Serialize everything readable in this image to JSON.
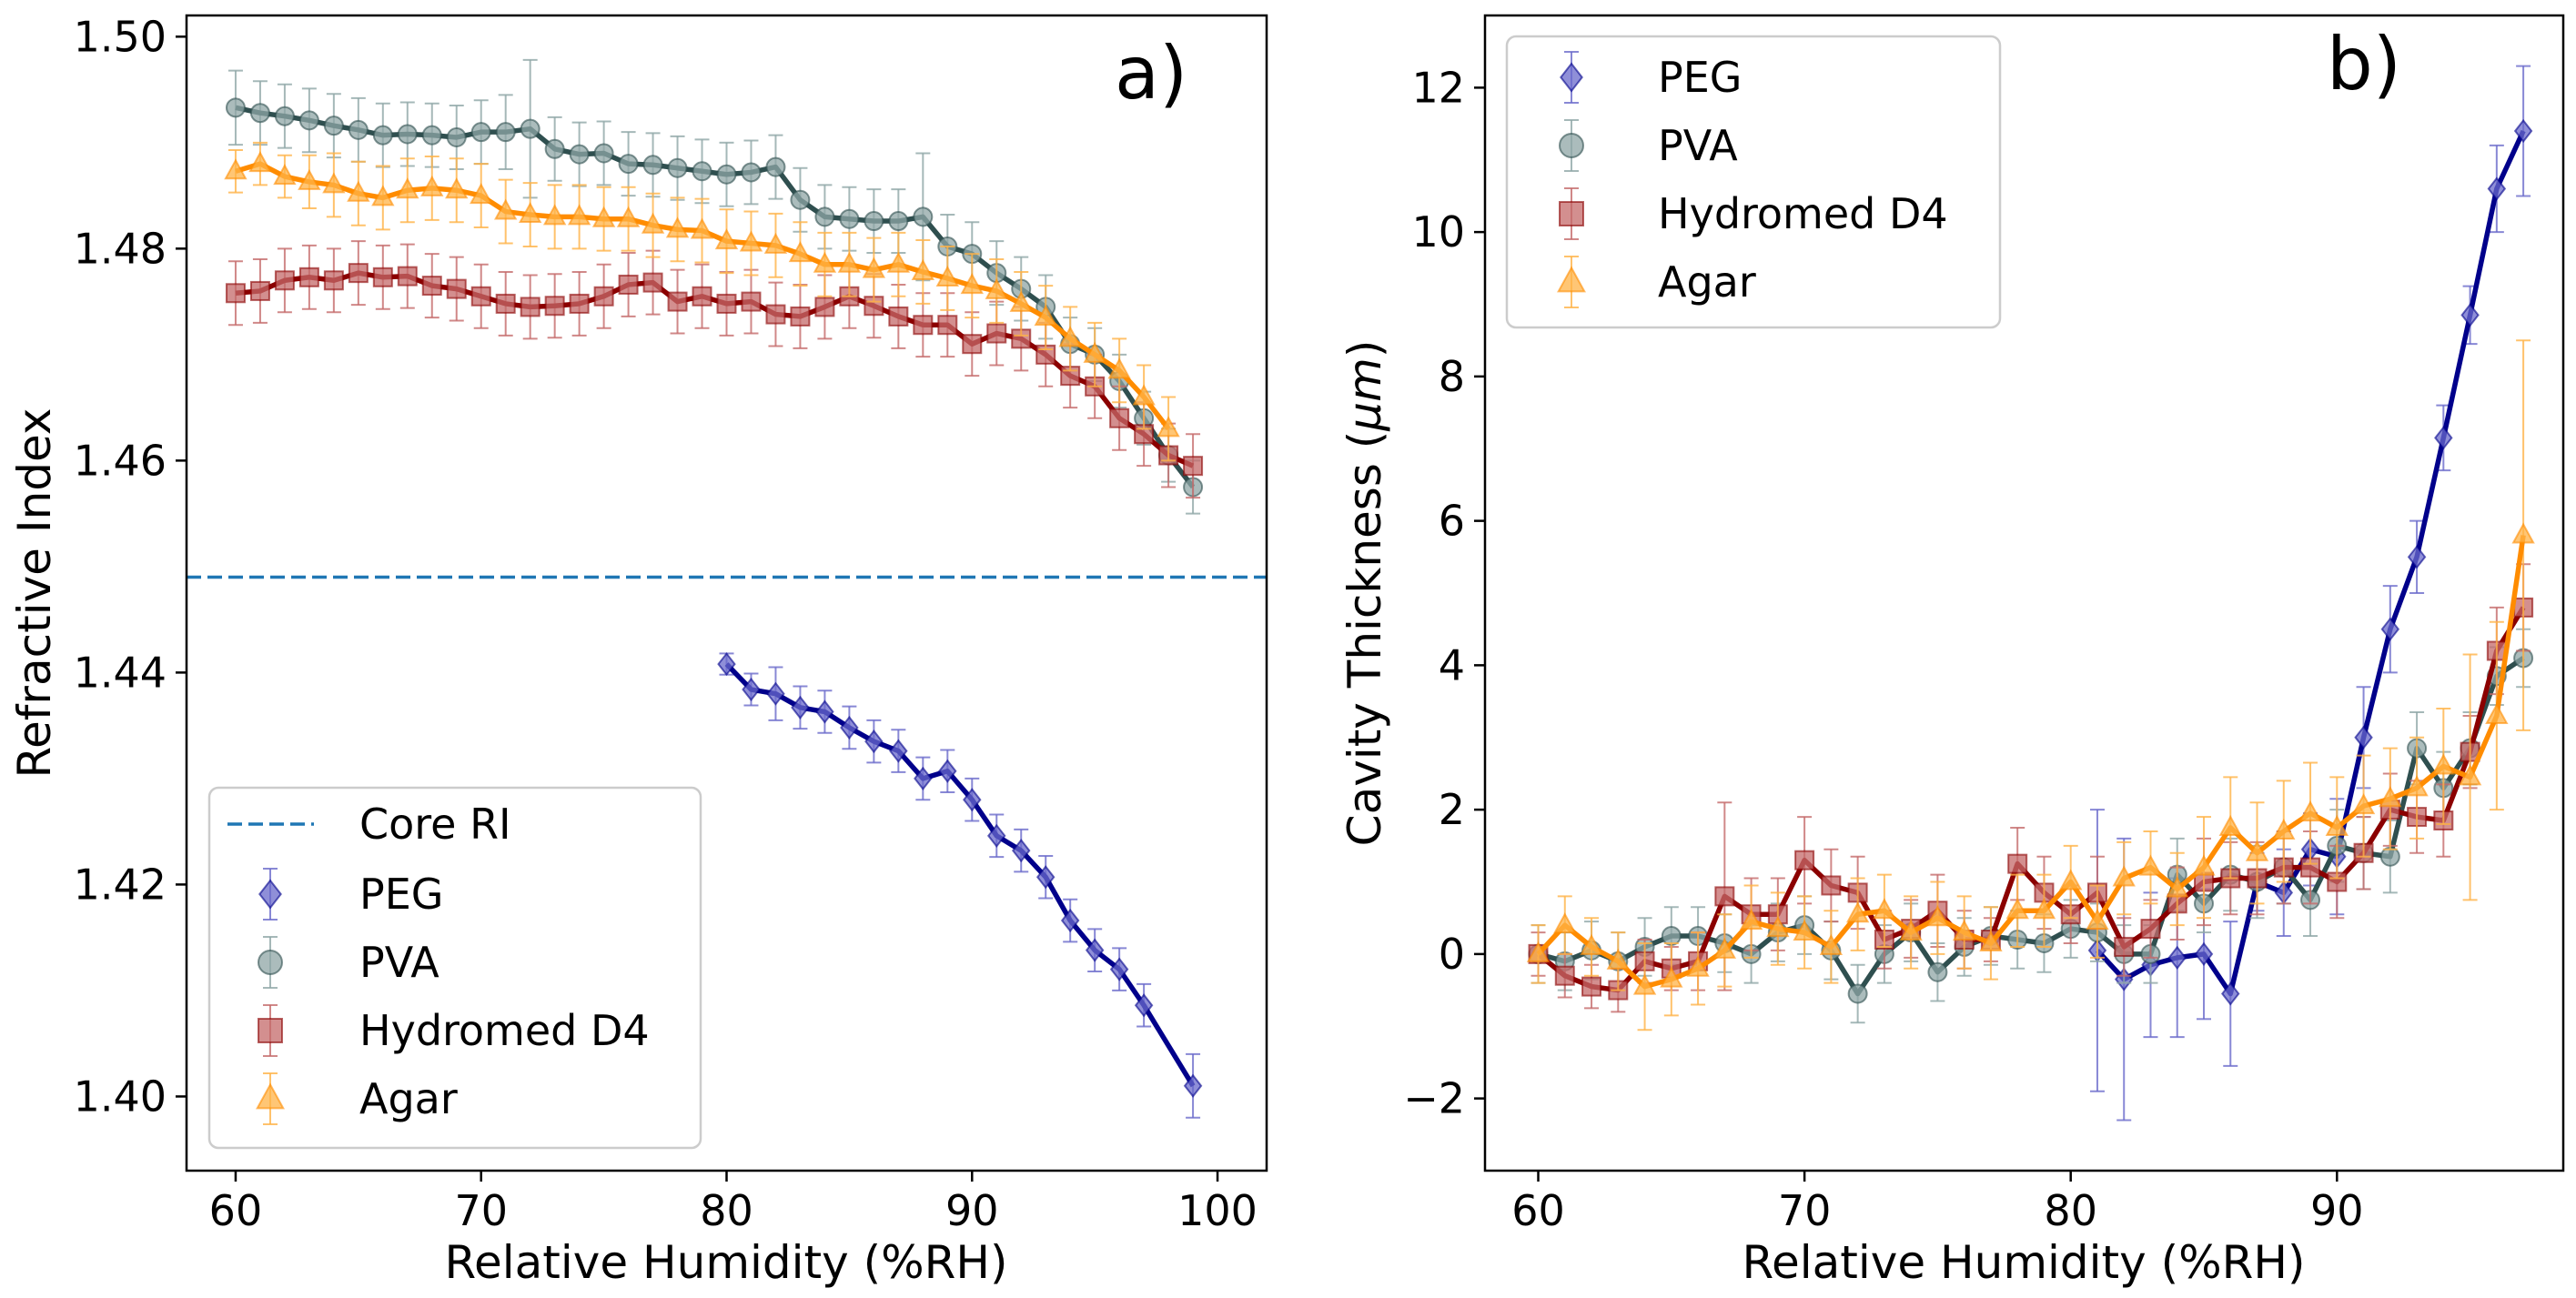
{
  "chart_data": [
    {
      "type": "line",
      "panel_label": "a)",
      "xlabel": "Relative Humidity (%RH)",
      "ylabel": "Refractive Index",
      "xlim": [
        58,
        102
      ],
      "ylim": [
        1.393,
        1.502
      ],
      "xticks": [
        60,
        70,
        80,
        90,
        100
      ],
      "yticks": [
        1.4,
        1.42,
        1.44,
        1.46,
        1.48,
        1.5
      ],
      "ytick_labels": [
        "1.40",
        "1.42",
        "1.44",
        "1.46",
        "1.48",
        "1.50"
      ],
      "reference_line": {
        "name": "Core RI",
        "y": 1.449,
        "color": "#1f77b4"
      },
      "legend_position": "lower-left",
      "legend": [
        "Core RI",
        "PEG",
        "PVA",
        "Hydromed D4",
        "Agar"
      ],
      "series": [
        {
          "name": "PEG",
          "marker": "diamond",
          "line_color": "#00008b",
          "marker_color": "#6a6acb",
          "x": [
            80,
            81,
            82,
            83,
            84,
            85,
            86,
            87,
            88,
            89,
            90,
            91,
            92,
            93,
            94,
            95,
            96,
            97,
            99
          ],
          "y": [
            1.4408,
            1.4384,
            1.438,
            1.4367,
            1.4363,
            1.4348,
            1.4335,
            1.4326,
            1.43,
            1.4307,
            1.428,
            1.4246,
            1.4232,
            1.4207,
            1.4166,
            1.4138,
            1.412,
            1.4086,
            1.401
          ],
          "err": [
            0.001,
            0.0015,
            0.0025,
            0.002,
            0.002,
            0.002,
            0.002,
            0.002,
            0.002,
            0.002,
            0.002,
            0.002,
            0.002,
            0.002,
            0.002,
            0.002,
            0.002,
            0.002,
            0.003
          ]
        },
        {
          "name": "PVA",
          "marker": "circle",
          "line_color": "#2f4f4f",
          "marker_color": "#8fa6a6",
          "x": [
            60,
            61,
            62,
            63,
            64,
            65,
            66,
            67,
            68,
            69,
            70,
            71,
            72,
            73,
            74,
            75,
            76,
            77,
            78,
            79,
            80,
            81,
            82,
            83,
            84,
            85,
            86,
            87,
            88,
            89,
            90,
            91,
            92,
            93,
            94,
            95,
            96,
            97,
            98,
            99
          ],
          "y": [
            1.4933,
            1.4928,
            1.4925,
            1.4921,
            1.4916,
            1.4912,
            1.4907,
            1.4908,
            1.4907,
            1.4905,
            1.491,
            1.491,
            1.4913,
            1.4894,
            1.4889,
            1.489,
            1.488,
            1.4879,
            1.4876,
            1.4873,
            1.487,
            1.4872,
            1.4877,
            1.4846,
            1.483,
            1.4828,
            1.4826,
            1.4826,
            1.483,
            1.4802,
            1.4795,
            1.4777,
            1.4762,
            1.4745,
            1.471,
            1.47,
            1.4675,
            1.464,
            1.4605,
            1.4575
          ],
          "err": [
            0.0035,
            0.003,
            0.003,
            0.003,
            0.003,
            0.003,
            0.003,
            0.003,
            0.003,
            0.003,
            0.003,
            0.0035,
            0.0065,
            0.003,
            0.003,
            0.003,
            0.003,
            0.003,
            0.003,
            0.003,
            0.003,
            0.003,
            0.003,
            0.003,
            0.003,
            0.003,
            0.003,
            0.003,
            0.006,
            0.003,
            0.003,
            0.003,
            0.003,
            0.003,
            0.0025,
            0.0025,
            0.0025,
            0.0025,
            0.0025,
            0.0025
          ]
        },
        {
          "name": "Hydromed D4",
          "marker": "square",
          "line_color": "#8b0000",
          "marker_color": "#c46a6a",
          "x": [
            60,
            61,
            62,
            63,
            64,
            65,
            66,
            67,
            68,
            69,
            70,
            71,
            72,
            73,
            74,
            75,
            76,
            77,
            78,
            79,
            80,
            81,
            82,
            83,
            84,
            85,
            86,
            87,
            88,
            89,
            90,
            91,
            92,
            93,
            94,
            95,
            96,
            97,
            98,
            99
          ],
          "y": [
            1.4758,
            1.476,
            1.477,
            1.4773,
            1.477,
            1.4777,
            1.4773,
            1.4774,
            1.4765,
            1.4762,
            1.4755,
            1.4748,
            1.4745,
            1.4746,
            1.4748,
            1.4755,
            1.4766,
            1.4768,
            1.475,
            1.4755,
            1.4748,
            1.475,
            1.4738,
            1.4736,
            1.4745,
            1.4755,
            1.4746,
            1.4736,
            1.4728,
            1.4728,
            1.471,
            1.472,
            1.4715,
            1.47,
            1.468,
            1.467,
            1.464,
            1.4625,
            1.4605,
            1.4595
          ],
          "err": [
            0.003,
            0.003,
            0.003,
            0.003,
            0.003,
            0.003,
            0.003,
            0.003,
            0.003,
            0.003,
            0.003,
            0.003,
            0.003,
            0.003,
            0.003,
            0.003,
            0.003,
            0.003,
            0.003,
            0.003,
            0.003,
            0.003,
            0.003,
            0.003,
            0.003,
            0.003,
            0.003,
            0.003,
            0.003,
            0.003,
            0.003,
            0.003,
            0.003,
            0.003,
            0.003,
            0.003,
            0.003,
            0.003,
            0.003,
            0.003
          ]
        },
        {
          "name": "Agar",
          "marker": "triangle",
          "line_color": "#ff8c00",
          "marker_color": "#ffb347",
          "x": [
            60,
            61,
            62,
            63,
            64,
            65,
            66,
            67,
            68,
            69,
            70,
            71,
            72,
            73,
            74,
            75,
            76,
            77,
            78,
            79,
            80,
            81,
            82,
            83,
            84,
            85,
            86,
            87,
            88,
            89,
            90,
            91,
            92,
            93,
            94,
            95,
            96,
            97,
            98
          ],
          "y": [
            1.4873,
            1.488,
            1.4868,
            1.4863,
            1.486,
            1.4852,
            1.4848,
            1.4855,
            1.4857,
            1.4855,
            1.485,
            1.4835,
            1.4832,
            1.483,
            1.483,
            1.4828,
            1.4828,
            1.4822,
            1.4818,
            1.4817,
            1.4807,
            1.4805,
            1.4803,
            1.4795,
            1.4785,
            1.4785,
            1.478,
            1.4785,
            1.4778,
            1.4772,
            1.4765,
            1.476,
            1.4748,
            1.4735,
            1.4715,
            1.47,
            1.4685,
            1.466,
            1.463
          ],
          "err": [
            0.002,
            0.002,
            0.002,
            0.0025,
            0.003,
            0.003,
            0.003,
            0.003,
            0.003,
            0.003,
            0.003,
            0.003,
            0.003,
            0.003,
            0.003,
            0.003,
            0.003,
            0.003,
            0.003,
            0.003,
            0.003,
            0.003,
            0.003,
            0.003,
            0.003,
            0.003,
            0.003,
            0.003,
            0.003,
            0.003,
            0.003,
            0.003,
            0.003,
            0.003,
            0.003,
            0.003,
            0.003,
            0.003,
            0.003
          ]
        }
      ]
    },
    {
      "type": "line",
      "panel_label": "b)",
      "xlabel": "Relative Humidity (%RH)",
      "ylabel": "Cavity Thickness (μm)",
      "ylabel_main": "Cavity Thickness (",
      "ylabel_unit": "μm",
      "ylabel_close": ")",
      "xlim": [
        58,
        98.5
      ],
      "ylim": [
        -3.0,
        13.0
      ],
      "xticks": [
        60,
        70,
        80,
        90
      ],
      "yticks": [
        -2,
        0,
        2,
        4,
        6,
        8,
        10,
        12
      ],
      "ytick_labels": [
        "−2",
        "0",
        "2",
        "4",
        "6",
        "8",
        "10",
        "12"
      ],
      "legend_position": "top-left",
      "legend": [
        "PEG",
        "PVA",
        "Hydromed D4",
        "Agar"
      ],
      "series": [
        {
          "name": "PEG",
          "marker": "diamond",
          "line_color": "#00008b",
          "marker_color": "#6a6acb",
          "x": [
            81,
            82,
            83,
            84,
            85,
            86,
            87,
            88,
            89,
            90,
            91,
            92,
            93,
            94,
            95,
            96,
            97
          ],
          "y": [
            0.05,
            -0.35,
            -0.15,
            -0.05,
            0.0,
            -0.55,
            1.0,
            0.85,
            1.45,
            1.35,
            3.0,
            4.5,
            5.5,
            7.15,
            8.85,
            10.6,
            11.4
          ],
          "err": [
            1.95,
            1.95,
            1.0,
            1.1,
            0.9,
            1.0,
            0.4,
            0.6,
            0.5,
            0.8,
            0.7,
            0.6,
            0.5,
            0.45,
            0.4,
            0.6,
            0.9
          ]
        },
        {
          "name": "PVA",
          "marker": "circle",
          "line_color": "#2f4f4f",
          "marker_color": "#8fa6a6",
          "x": [
            60,
            61,
            62,
            63,
            64,
            65,
            66,
            67,
            68,
            69,
            70,
            71,
            72,
            73,
            74,
            75,
            76,
            77,
            78,
            79,
            80,
            81,
            82,
            83,
            84,
            85,
            86,
            87,
            88,
            89,
            90,
            91,
            92,
            93,
            94,
            95,
            96,
            97
          ],
          "y": [
            0.0,
            -0.1,
            0.05,
            -0.1,
            0.1,
            0.25,
            0.25,
            0.15,
            0.0,
            0.3,
            0.4,
            0.05,
            -0.55,
            0.0,
            0.3,
            -0.25,
            0.1,
            0.25,
            0.2,
            0.15,
            0.35,
            0.3,
            0.0,
            0.0,
            1.1,
            0.7,
            1.1,
            1.0,
            1.2,
            0.75,
            1.5,
            1.4,
            1.35,
            2.85,
            2.3,
            2.85,
            3.85,
            4.1
          ],
          "err": [
            0.4,
            0.4,
            0.4,
            0.4,
            0.4,
            0.4,
            0.4,
            0.4,
            0.4,
            0.4,
            0.4,
            0.4,
            0.4,
            0.4,
            0.4,
            0.4,
            0.4,
            0.4,
            0.4,
            0.4,
            0.4,
            0.4,
            0.4,
            0.4,
            0.5,
            0.4,
            0.5,
            0.5,
            0.5,
            0.5,
            0.5,
            0.5,
            0.5,
            0.5,
            0.5,
            0.5,
            0.4,
            0.4
          ]
        },
        {
          "name": "Hydromed D4",
          "marker": "square",
          "line_color": "#8b0000",
          "marker_color": "#c46a6a",
          "x": [
            60,
            61,
            62,
            63,
            64,
            65,
            66,
            67,
            68,
            69,
            70,
            71,
            72,
            73,
            74,
            75,
            76,
            77,
            78,
            79,
            80,
            81,
            82,
            83,
            84,
            85,
            86,
            87,
            88,
            89,
            90,
            91,
            92,
            93,
            94,
            95,
            96,
            97
          ],
          "y": [
            0.0,
            -0.3,
            -0.45,
            -0.5,
            -0.1,
            -0.2,
            -0.1,
            0.8,
            0.55,
            0.55,
            1.3,
            0.95,
            0.85,
            0.2,
            0.35,
            0.6,
            0.2,
            0.2,
            1.25,
            0.85,
            0.55,
            0.85,
            0.1,
            0.35,
            0.7,
            1.0,
            1.05,
            1.05,
            1.2,
            1.2,
            1.0,
            1.4,
            2.0,
            1.9,
            1.85,
            2.8,
            4.2,
            4.8
          ],
          "err": [
            0.3,
            0.3,
            0.3,
            0.3,
            0.3,
            0.3,
            0.4,
            1.3,
            0.5,
            0.5,
            0.6,
            0.5,
            0.5,
            0.4,
            0.4,
            0.5,
            0.4,
            0.3,
            0.5,
            0.5,
            0.4,
            0.5,
            0.4,
            0.4,
            0.5,
            0.6,
            0.5,
            0.5,
            0.5,
            0.5,
            0.5,
            0.5,
            0.5,
            0.5,
            0.5,
            0.5,
            0.6,
            0.6
          ]
        },
        {
          "name": "Agar",
          "marker": "triangle",
          "line_color": "#ff8c00",
          "marker_color": "#ffb347",
          "x": [
            60,
            61,
            62,
            63,
            64,
            65,
            66,
            67,
            68,
            69,
            70,
            71,
            72,
            73,
            74,
            75,
            76,
            77,
            78,
            79,
            80,
            81,
            82,
            83,
            84,
            85,
            86,
            87,
            88,
            89,
            90,
            91,
            92,
            93,
            94,
            95,
            96,
            97
          ],
          "y": [
            0.0,
            0.4,
            0.1,
            -0.1,
            -0.45,
            -0.35,
            -0.2,
            0.05,
            0.45,
            0.35,
            0.3,
            0.1,
            0.55,
            0.6,
            0.3,
            0.5,
            0.3,
            0.15,
            0.6,
            0.6,
            1.0,
            0.45,
            1.05,
            1.2,
            0.9,
            1.2,
            1.75,
            1.4,
            1.7,
            1.95,
            1.75,
            2.05,
            2.15,
            2.3,
            2.6,
            2.45,
            3.3,
            5.8
          ],
          "err": [
            0.4,
            0.4,
            0.4,
            0.4,
            0.6,
            0.5,
            0.5,
            0.5,
            0.5,
            0.5,
            0.5,
            0.5,
            0.5,
            0.5,
            0.5,
            0.5,
            0.5,
            0.5,
            0.5,
            0.5,
            0.5,
            0.5,
            0.5,
            0.5,
            0.5,
            0.7,
            0.7,
            0.7,
            0.7,
            0.7,
            0.7,
            0.7,
            0.7,
            0.7,
            0.8,
            1.7,
            1.3,
            2.7
          ]
        }
      ]
    }
  ]
}
